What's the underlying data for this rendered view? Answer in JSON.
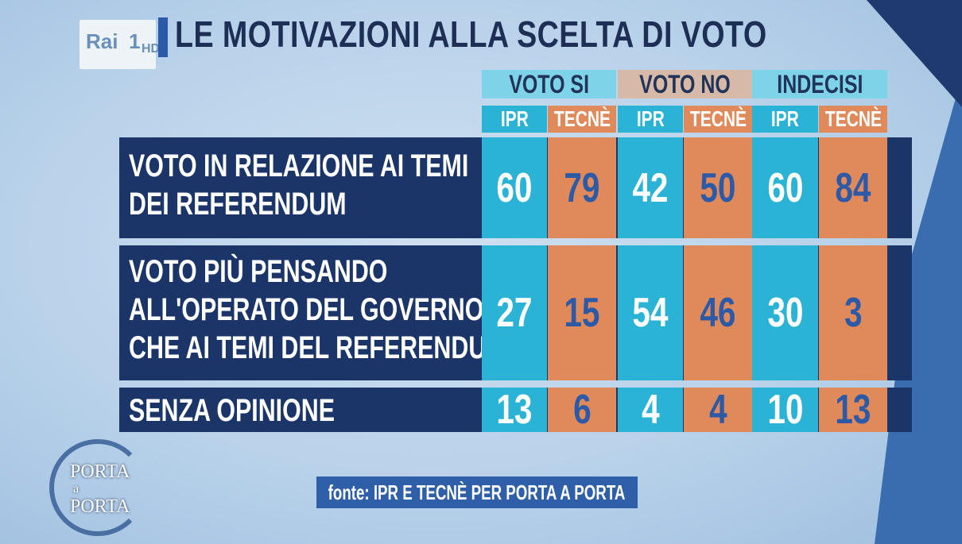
{
  "brand": {
    "logo_main": "Rai",
    "logo_channel": "1",
    "logo_hd": "HD",
    "show_logo": [
      "PORTA",
      "a",
      "PORTA"
    ]
  },
  "title": "LE MOTIVAZIONI ALLA SCELTA DI VOTO",
  "colors": {
    "ipr": "#2ab3d4",
    "tecne": "#e0895a",
    "band": "#1b3568",
    "voto_si_header": "#7fd3e8",
    "voto_no_header": "#d6b9a6",
    "indecisi_header": "#7fd3e8"
  },
  "chart_data": {
    "type": "table",
    "title": "LE MOTIVAZIONI ALLA SCELTA DI VOTO",
    "groups": [
      "VOTO SI",
      "VOTO NO",
      "INDECISI"
    ],
    "subcolumns": [
      "IPR",
      "TECNÈ"
    ],
    "rows": [
      {
        "label": [
          "VOTO IN RELAZIONE AI TEMI",
          "DEI REFERENDUM"
        ],
        "values": [
          60,
          79,
          42,
          50,
          60,
          84
        ]
      },
      {
        "label": [
          "VOTO PIÙ PENSANDO",
          "ALL'OPERATO DEL GOVERNO",
          "CHE AI TEMI DEL REFERENDUM"
        ],
        "values": [
          27,
          15,
          54,
          46,
          30,
          3
        ]
      },
      {
        "label": [
          "SENZA OPINIONE"
        ],
        "values": [
          13,
          6,
          4,
          4,
          10,
          13
        ]
      }
    ]
  },
  "source": "fonte: IPR E TECNÈ PER PORTA A PORTA"
}
